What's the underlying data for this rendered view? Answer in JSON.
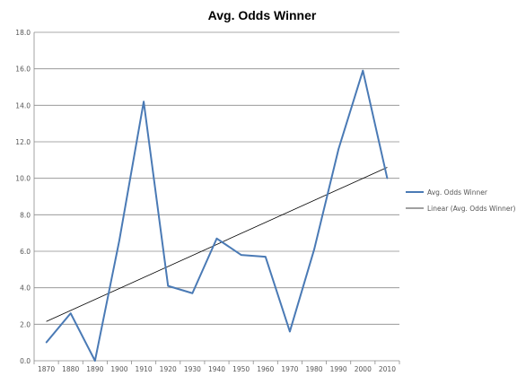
{
  "chart_data": {
    "type": "line",
    "title": "Avg. Odds Winner",
    "xlabel": "",
    "ylabel": "",
    "x": [
      "1870",
      "1880",
      "1890",
      "1900",
      "1910",
      "1920",
      "1930",
      "1940",
      "1950",
      "1960",
      "1970",
      "1980",
      "1990",
      "2000",
      "2010"
    ],
    "x_ticks": [
      "1870",
      "1880",
      "1890",
      "1900",
      "1910",
      "1920",
      "1930",
      "1940",
      "1950",
      "1960",
      "1970",
      "1980",
      "1990",
      "2000",
      "2010"
    ],
    "y_ticks": [
      "0.0",
      "2.0",
      "4.0",
      "6.0",
      "8.0",
      "10.0",
      "12.0",
      "14.0",
      "16.0",
      "18.0"
    ],
    "ylim": [
      0,
      18
    ],
    "grid": "horizontal",
    "legend_position": "right",
    "series": [
      {
        "name": "Avg. Odds Winner",
        "color": "#4a7ab5",
        "values": [
          1.0,
          2.6,
          0.0,
          6.6,
          14.2,
          4.1,
          3.7,
          6.7,
          5.8,
          5.7,
          1.6,
          6.1,
          11.6,
          15.9,
          10.0
        ]
      }
    ],
    "trendline": {
      "name": "Linear (Avg. Odds Winner)",
      "color": "#000000",
      "start": 2.15,
      "end": 10.6
    }
  }
}
